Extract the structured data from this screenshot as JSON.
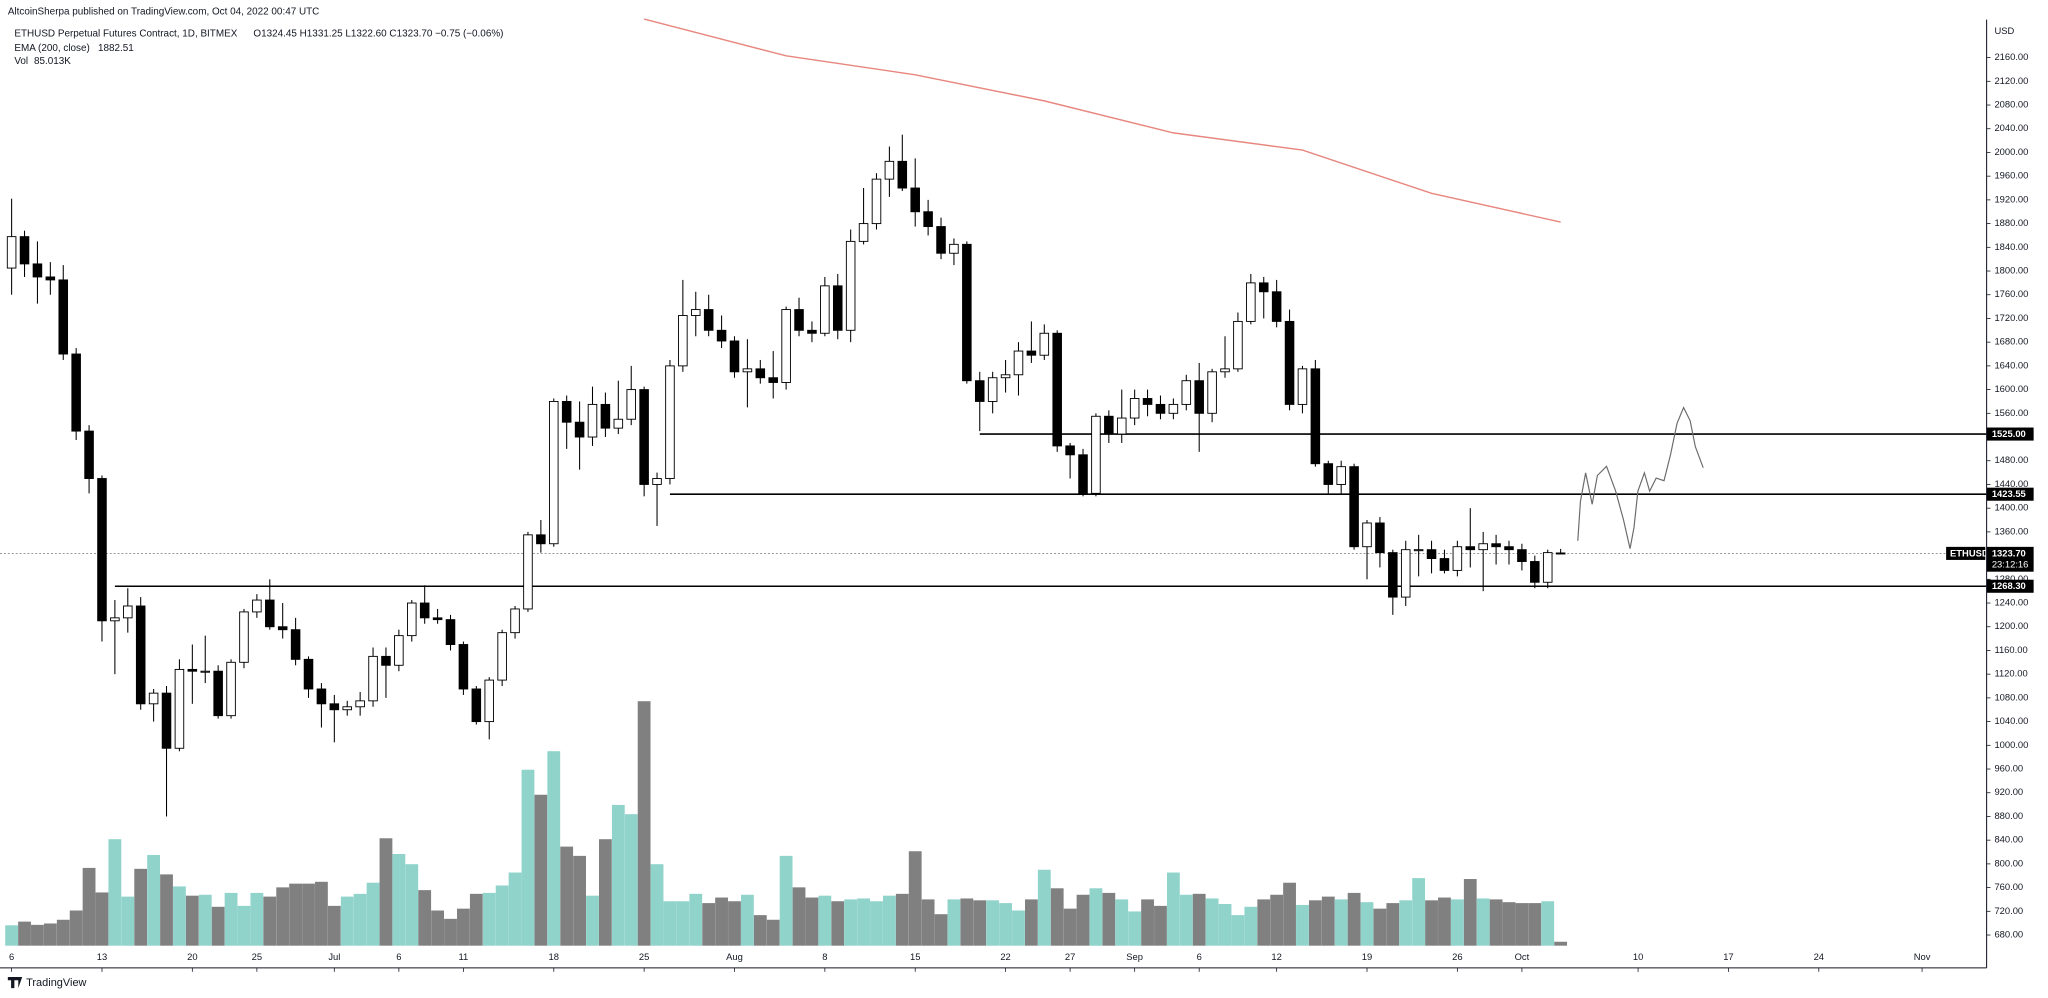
{
  "header": {
    "publisher": "AltcoinSherpa published on TradingView.com, Oct 04, 2022 00:47 UTC",
    "logo": "TradingView"
  },
  "chart_data": {
    "type": "candlestick",
    "title": "ETHUSD Perpetual Futures Contract, 1D, BITMEX",
    "ohlc_label": "O1324.45 H1331.25 L1322.60 C1323.70 −0.75 (−0.06%)",
    "currency": "USD",
    "up_color": "#ffffff",
    "down_color": "#000000",
    "volume_up_color": "#8fd3cb",
    "volume_down_color": "#808080",
    "x": [
      0,
      1,
      2,
      3,
      4,
      5,
      6,
      7,
      8,
      9,
      10,
      11,
      12,
      13,
      14,
      15,
      16,
      17,
      18,
      19,
      20,
      21,
      22,
      23,
      24,
      25,
      26,
      27,
      28,
      29,
      30,
      31,
      32,
      33,
      34,
      35,
      36,
      37,
      38,
      39,
      40,
      41,
      42,
      43,
      44,
      45,
      46,
      47,
      48,
      49,
      50,
      51,
      52,
      53,
      54,
      55,
      56,
      57,
      58,
      59,
      60,
      61,
      62,
      63,
      64,
      65,
      66,
      67,
      68,
      69,
      70,
      71,
      72,
      73,
      74,
      75,
      76,
      77,
      78,
      79,
      80,
      81,
      82,
      83,
      84,
      85,
      86,
      87,
      88,
      89,
      90,
      91,
      92,
      93,
      94,
      95,
      96,
      97,
      98,
      99,
      100,
      101,
      102,
      103,
      104,
      105,
      106,
      107,
      108,
      109,
      110,
      111,
      112,
      113,
      114,
      115,
      116,
      117,
      118,
      119,
      120
    ],
    "open": [
      1805,
      1858,
      1812,
      1790,
      1785,
      1660,
      1530,
      1450,
      1210,
      1215,
      1235,
      1070,
      1088,
      995,
      1128,
      1125,
      1125,
      1050,
      1140,
      1225,
      1245,
      1200,
      1195,
      1145,
      1095,
      1070,
      1060,
      1065,
      1075,
      1150,
      1135,
      1185,
      1240,
      1215,
      1212,
      1170,
      1095,
      1040,
      1110,
      1190,
      1230,
      1355,
      1340,
      1580,
      1545,
      1520,
      1575,
      1535,
      1550,
      1600,
      1440,
      1450,
      1640,
      1725,
      1735,
      1700,
      1682,
      1630,
      1635,
      1620,
      1612,
      1735,
      1700,
      1695,
      1775,
      1700,
      1850,
      1880,
      1955,
      1985,
      1940,
      1900,
      1875,
      1830,
      1845,
      1615,
      1580,
      1620,
      1625,
      1665,
      1658,
      1695,
      1505,
      1490,
      1425,
      1555,
      1525,
      1552,
      1585,
      1575,
      1560,
      1575,
      1615,
      1560,
      1630,
      1635,
      1715,
      1780,
      1765,
      1715,
      1575,
      1635,
      1475,
      1440,
      1470,
      1335,
      1375,
      1325,
      1250,
      1330,
      1330,
      1315,
      1295,
      1335,
      1330,
      1340,
      1335,
      1330,
      1310,
      1275,
      1324.45
    ],
    "high": [
      1922,
      1868,
      1850,
      1815,
      1810,
      1670,
      1540,
      1455,
      1245,
      1265,
      1250,
      1095,
      1100,
      1145,
      1170,
      1185,
      1135,
      1145,
      1230,
      1255,
      1280,
      1240,
      1215,
      1150,
      1105,
      1085,
      1075,
      1090,
      1165,
      1165,
      1195,
      1245,
      1270,
      1230,
      1220,
      1175,
      1100,
      1115,
      1195,
      1235,
      1360,
      1380,
      1585,
      1590,
      1580,
      1605,
      1595,
      1615,
      1640,
      1605,
      1460,
      1650,
      1785,
      1765,
      1760,
      1725,
      1690,
      1685,
      1650,
      1665,
      1740,
      1755,
      1715,
      1790,
      1795,
      1870,
      1940,
      1965,
      2010,
      2030,
      1990,
      1920,
      1890,
      1855,
      1850,
      1630,
      1630,
      1650,
      1680,
      1715,
      1710,
      1700,
      1510,
      1500,
      1560,
      1565,
      1600,
      1600,
      1600,
      1590,
      1585,
      1625,
      1645,
      1635,
      1690,
      1730,
      1795,
      1790,
      1785,
      1735,
      1640,
      1650,
      1480,
      1480,
      1475,
      1380,
      1385,
      1330,
      1345,
      1355,
      1345,
      1330,
      1345,
      1400,
      1360,
      1355,
      1345,
      1340,
      1320,
      1330,
      1331.25
    ],
    "low": [
      1760,
      1790,
      1745,
      1760,
      1650,
      1515,
      1425,
      1175,
      1120,
      1190,
      1060,
      1040,
      880,
      990,
      1070,
      1105,
      1045,
      1045,
      1130,
      1215,
      1195,
      1180,
      1135,
      1080,
      1030,
      1005,
      1050,
      1050,
      1065,
      1080,
      1125,
      1175,
      1205,
      1205,
      1160,
      1085,
      1035,
      1010,
      1100,
      1180,
      1225,
      1325,
      1335,
      1500,
      1465,
      1505,
      1520,
      1525,
      1540,
      1420,
      1370,
      1440,
      1630,
      1690,
      1690,
      1670,
      1620,
      1570,
      1610,
      1585,
      1600,
      1690,
      1680,
      1690,
      1685,
      1680,
      1845,
      1870,
      1925,
      1935,
      1875,
      1860,
      1820,
      1810,
      1610,
      1530,
      1560,
      1595,
      1590,
      1645,
      1650,
      1495,
      1450,
      1420,
      1420,
      1510,
      1510,
      1540,
      1555,
      1550,
      1550,
      1565,
      1495,
      1545,
      1620,
      1630,
      1710,
      1720,
      1705,
      1565,
      1560,
      1470,
      1425,
      1425,
      1330,
      1280,
      1300,
      1220,
      1235,
      1285,
      1290,
      1290,
      1285,
      1300,
      1260,
      1305,
      1305,
      1295,
      1265,
      1265,
      1322.6
    ],
    "close": [
      1858,
      1812,
      1790,
      1785,
      1660,
      1530,
      1450,
      1210,
      1215,
      1235,
      1070,
      1088,
      995,
      1128,
      1125,
      1125,
      1050,
      1140,
      1225,
      1245,
      1200,
      1195,
      1145,
      1095,
      1070,
      1060,
      1065,
      1075,
      1150,
      1135,
      1185,
      1240,
      1215,
      1212,
      1170,
      1095,
      1040,
      1110,
      1190,
      1230,
      1355,
      1340,
      1580,
      1545,
      1520,
      1575,
      1535,
      1550,
      1600,
      1440,
      1450,
      1640,
      1725,
      1735,
      1700,
      1682,
      1630,
      1635,
      1620,
      1612,
      1735,
      1700,
      1695,
      1775,
      1700,
      1850,
      1880,
      1955,
      1985,
      1940,
      1900,
      1875,
      1830,
      1845,
      1615,
      1580,
      1620,
      1625,
      1665,
      1658,
      1695,
      1505,
      1490,
      1425,
      1555,
      1525,
      1552,
      1585,
      1575,
      1560,
      1575,
      1615,
      1560,
      1630,
      1635,
      1715,
      1780,
      1765,
      1715,
      1575,
      1635,
      1475,
      1440,
      1470,
      1335,
      1375,
      1325,
      1250,
      1330,
      1330,
      1315,
      1295,
      1335,
      1330,
      1340,
      1335,
      1330,
      1310,
      1275,
      1325,
      1323.7
    ],
    "volume": [
      440,
      520,
      450,
      480,
      560,
      760,
      1680,
      1150,
      2300,
      1060,
      1660,
      1960,
      1540,
      1280,
      1080,
      1100,
      840,
      1140,
      860,
      1140,
      1060,
      1260,
      1340,
      1340,
      1380,
      860,
      1060,
      1120,
      1360,
      2320,
      1980,
      1760,
      1200,
      760,
      580,
      800,
      1120,
      1140,
      1300,
      1580,
      3800,
      3260,
      4200,
      2140,
      1940,
      1080,
      2300,
      3040,
      2840,
      5280,
      1760,
      960,
      960,
      1120,
      920,
      1040,
      960,
      1100,
      660,
      560,
      1940,
      1260,
      1040,
      1080,
      960,
      1000,
      1020,
      960,
      1080,
      1120,
      2040,
      1000,
      680,
      1000,
      1020,
      980,
      980,
      920,
      760,
      1000,
      1640,
      1240,
      800,
      1100,
      1240,
      1140,
      1000,
      740,
      1000,
      860,
      1580,
      1100,
      1120,
      1020,
      900,
      660,
      840,
      1000,
      1100,
      1360,
      880,
      980,
      1060,
      1000,
      1140,
      940,
      800,
      920,
      980,
      1460,
      980,
      1040,
      1000,
      1440,
      1020,
      1000,
      940,
      920,
      920,
      960,
      85.013
    ],
    "volume_label": "Vol",
    "volume_value_label": "85.013K",
    "y2lim": [
      0,
      20000
    ],
    "ema": {
      "name": "EMA (200, close)",
      "value_label": "1882.51",
      "color": "#e8877f",
      "x": [
        49,
        60,
        70,
        80,
        90,
        100,
        110,
        120
      ],
      "values": [
        2225,
        2163,
        2131,
        2087,
        2033,
        2004,
        1931,
        1882.51
      ]
    },
    "levels": [
      {
        "value": 1525,
        "label": "1525.00",
        "start": 75
      },
      {
        "value": 1423.55,
        "label": "1423.55",
        "start": 51
      },
      {
        "value": 1268.3,
        "label": "1268.30",
        "start": 8
      }
    ],
    "last_price": {
      "value": 1323.7,
      "label": "1323.70",
      "symbol": "ETHUSD",
      "countdown": "23:12:16"
    },
    "xlim": [
      -0.9,
      153
    ],
    "ylim": [
      662,
      2224
    ],
    "xticks": [
      {
        "value": 0,
        "label": "6"
      },
      {
        "value": 7,
        "label": "13"
      },
      {
        "value": 14,
        "label": "20"
      },
      {
        "value": 19,
        "label": "25"
      },
      {
        "value": 25,
        "label": "Jul"
      },
      {
        "value": 30,
        "label": "6"
      },
      {
        "value": 35,
        "label": "11"
      },
      {
        "value": 42,
        "label": "18"
      },
      {
        "value": 49,
        "label": "25"
      },
      {
        "value": 56,
        "label": "Aug"
      },
      {
        "value": 63,
        "label": "8"
      },
      {
        "value": 70,
        "label": "15"
      },
      {
        "value": 77,
        "label": "22"
      },
      {
        "value": 82,
        "label": "27"
      },
      {
        "value": 87,
        "label": "Sep"
      },
      {
        "value": 92,
        "label": "6"
      },
      {
        "value": 98,
        "label": "12"
      },
      {
        "value": 105,
        "label": "19"
      },
      {
        "value": 112,
        "label": "26"
      },
      {
        "value": 117,
        "label": "Oct"
      },
      {
        "value": 126,
        "label": "10"
      },
      {
        "value": 133,
        "label": "17"
      },
      {
        "value": 140,
        "label": "24"
      },
      {
        "value": 148,
        "label": "Nov"
      }
    ],
    "yticks": [
      {
        "value": 680,
        "label": "680.00"
      },
      {
        "value": 720,
        "label": "720.00"
      },
      {
        "value": 760,
        "label": "760.00"
      },
      {
        "value": 800,
        "label": "800.00"
      },
      {
        "value": 840,
        "label": "840.00"
      },
      {
        "value": 880,
        "label": "880.00"
      },
      {
        "value": 920,
        "label": "920.00"
      },
      {
        "value": 960,
        "label": "960.00"
      },
      {
        "value": 1000,
        "label": "1000.00"
      },
      {
        "value": 1040,
        "label": "1040.00"
      },
      {
        "value": 1080,
        "label": "1080.00"
      },
      {
        "value": 1120,
        "label": "1120.00"
      },
      {
        "value": 1160,
        "label": "1160.00"
      },
      {
        "value": 1200,
        "label": "1200.00"
      },
      {
        "value": 1240,
        "label": "1240.00"
      },
      {
        "value": 1280,
        "label": "1280.00"
      },
      {
        "value": 1320,
        "label": "1320.00"
      },
      {
        "value": 1360,
        "label": "1360.00"
      },
      {
        "value": 1400,
        "label": "1400.00"
      },
      {
        "value": 1440,
        "label": "1440.00"
      },
      {
        "value": 1480,
        "label": "1480.00"
      },
      {
        "value": 1520,
        "label": "1520.00"
      },
      {
        "value": 1560,
        "label": "1560.00"
      },
      {
        "value": 1600,
        "label": "1600.00"
      },
      {
        "value": 1640,
        "label": "1640.00"
      },
      {
        "value": 1680,
        "label": "1680.00"
      },
      {
        "value": 1720,
        "label": "1720.00"
      },
      {
        "value": 1760,
        "label": "1760.00"
      },
      {
        "value": 1800,
        "label": "1800.00"
      },
      {
        "value": 1840,
        "label": "1840.00"
      },
      {
        "value": 1880,
        "label": "1880.00"
      },
      {
        "value": 1920,
        "label": "1920.00"
      },
      {
        "value": 1960,
        "label": "1960.00"
      },
      {
        "value": 2000,
        "label": "2000.00"
      },
      {
        "value": 2040,
        "label": "2040.00"
      },
      {
        "value": 2080,
        "label": "2080.00"
      },
      {
        "value": 2120,
        "label": "2120.00"
      },
      {
        "value": 2160,
        "label": "2160.00"
      }
    ]
  }
}
